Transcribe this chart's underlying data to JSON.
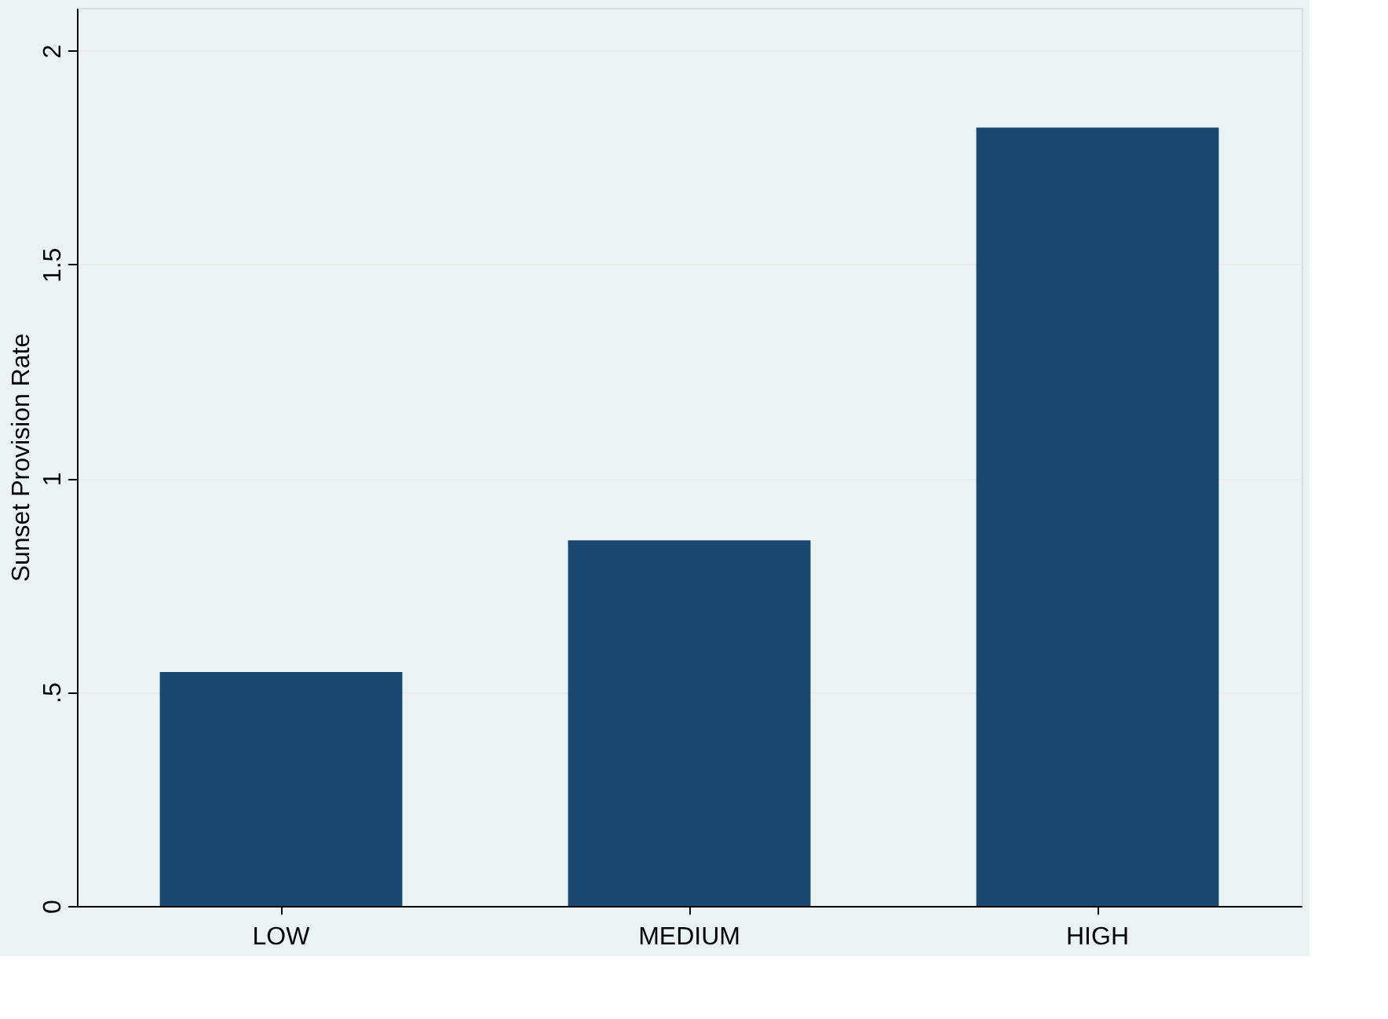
{
  "chart_data": {
    "type": "bar",
    "ylabel": "Sunset Provision Rate",
    "categories": [
      "LOW",
      "MEDIUM",
      "HIGH"
    ],
    "values": [
      0.547,
      0.855,
      1.82
    ],
    "color": "#1a476f",
    "ylim": [
      0,
      2.1
    ],
    "yticks": [
      0,
      {
        "value": 0.5,
        "label": ".5"
      },
      1,
      1.5,
      2
    ],
    "grid": "y"
  }
}
